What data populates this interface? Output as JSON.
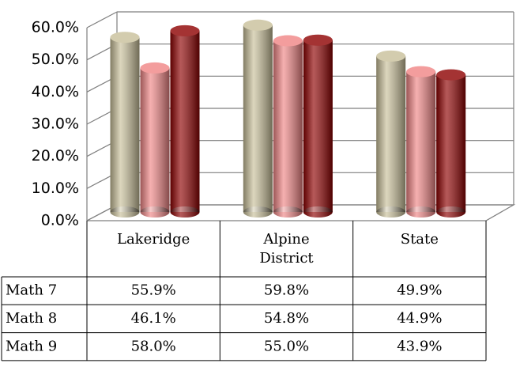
{
  "chart_data": {
    "type": "bar",
    "categories": [
      "Lakeridge",
      "Alpine District",
      "State"
    ],
    "series": [
      {
        "name": "Math 7",
        "color": "#c9c09a",
        "values": [
          55.9,
          59.8,
          49.9
        ],
        "value_labels": [
          "55.9%",
          "59.8%",
          "49.9%"
        ]
      },
      {
        "name": "Math 8",
        "color": "#f08585",
        "values": [
          46.1,
          54.8,
          44.9
        ],
        "value_labels": [
          "46.1%",
          "54.8%",
          "44.9%"
        ]
      },
      {
        "name": "Math 9",
        "color": "#8e0000",
        "values": [
          58.0,
          55.0,
          43.9
        ],
        "value_labels": [
          "58.0%",
          "55.0%",
          "43.9%"
        ]
      }
    ],
    "ylim": [
      0,
      60
    ],
    "yticks": [
      {
        "value": 0,
        "label": "0.0%"
      },
      {
        "value": 10,
        "label": "10.0%"
      },
      {
        "value": 20,
        "label": "20.0%"
      },
      {
        "value": 30,
        "label": "30.0%"
      },
      {
        "value": 40,
        "label": "40.0%"
      },
      {
        "value": 50,
        "label": "50.0%"
      },
      {
        "value": 60,
        "label": "60.0%"
      }
    ],
    "grid": true
  }
}
